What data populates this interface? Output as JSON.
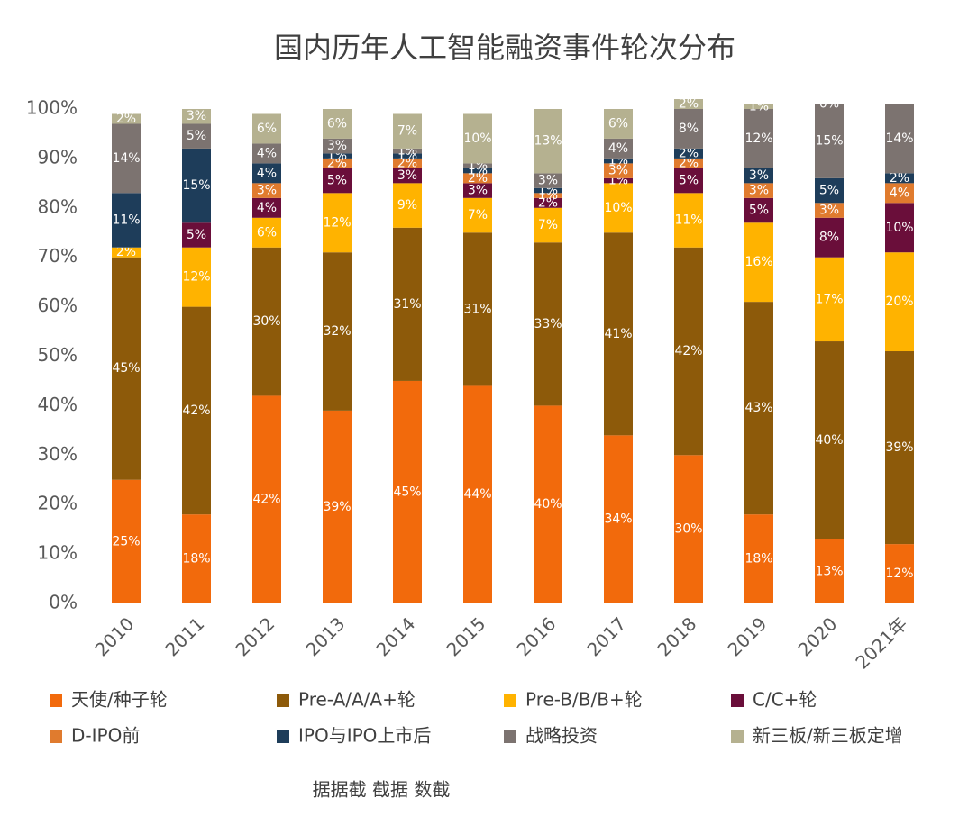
{
  "chart_data": {
    "type": "bar",
    "stacked": true,
    "title": "国内历年人工智能融资事件轮次分布",
    "categories": [
      "2010",
      "2011",
      "2012",
      "2013",
      "2014",
      "2015",
      "2016",
      "2017",
      "2018",
      "2019",
      "2020",
      "2021年"
    ],
    "ylim": [
      0,
      100
    ],
    "yticks": [
      {
        "value": 0,
        "label": "0%"
      },
      {
        "value": 10,
        "label": "10%"
      },
      {
        "value": 20,
        "label": "20%"
      },
      {
        "value": 30,
        "label": "30%"
      },
      {
        "value": 40,
        "label": "40%"
      },
      {
        "value": 50,
        "label": "50%"
      },
      {
        "value": 60,
        "label": "60%"
      },
      {
        "value": 70,
        "label": "70%"
      },
      {
        "value": 80,
        "label": "80%"
      },
      {
        "value": 90,
        "label": "90%"
      },
      {
        "value": 100,
        "label": "100%"
      }
    ],
    "grid": false,
    "series": [
      {
        "name": "天使/种子轮",
        "color": "#f26a0c",
        "values": [
          25,
          18,
          42,
          39,
          45,
          44,
          40,
          34,
          30,
          18,
          13,
          12
        ],
        "value_labels": [
          "25%",
          "18%",
          "42%",
          "39%",
          "45%",
          "44%",
          "40%",
          "34%",
          "30%",
          "18%",
          "13%",
          "12%"
        ]
      },
      {
        "name": "Pre-A/A/A+轮",
        "color": "#8d5a0a",
        "values": [
          45,
          42,
          30,
          32,
          31,
          31,
          33,
          41,
          42,
          43,
          40,
          39
        ],
        "value_labels": [
          "45%",
          "42%",
          "30%",
          "32%",
          "31%",
          "31%",
          "33%",
          "41%",
          "42%",
          "43%",
          "40%",
          "39%"
        ]
      },
      {
        "name": "Pre-B/B/B+轮",
        "color": "#ffb300",
        "values": [
          2,
          12,
          6,
          12,
          9,
          7,
          7,
          10,
          11,
          16,
          17,
          20
        ],
        "value_labels": [
          "2%",
          "12%",
          "6%",
          "12%",
          "9%",
          "7%",
          "7%",
          "10%",
          "11%",
          "16%",
          "17%",
          "20%"
        ]
      },
      {
        "name": "C/C+轮",
        "color": "#6a0e3a",
        "values": [
          null,
          5,
          4,
          5,
          3,
          3,
          2,
          1,
          5,
          5,
          8,
          10
        ],
        "value_labels": [
          null,
          "5%",
          "4%",
          "5%",
          "3%",
          "3%",
          "2%",
          "1%",
          "5%",
          "5%",
          "8%",
          "10%"
        ]
      },
      {
        "name": "D-IPO前",
        "color": "#e07b2e",
        "values": [
          null,
          null,
          3,
          2,
          2,
          2,
          1,
          3,
          2,
          3,
          3,
          4
        ],
        "value_labels": [
          null,
          null,
          "3%",
          "2%",
          "2%",
          "2%",
          "1%",
          "3%",
          "2%",
          "3%",
          "3%",
          "4%"
        ]
      },
      {
        "name": "IPO与IPO上市后",
        "color": "#1e3d5a",
        "values": [
          11,
          15,
          4,
          1,
          1,
          1,
          1,
          1,
          2,
          3,
          5,
          2
        ],
        "value_labels": [
          "11%",
          "15%",
          "4%",
          "1%",
          "1%",
          "1%",
          "1%",
          "1%",
          "2%",
          "3%",
          "5%",
          "2%"
        ]
      },
      {
        "name": "战略投资",
        "color": "#7c7370",
        "values": [
          14,
          5,
          4,
          3,
          1,
          1,
          3,
          4,
          8,
          12,
          15,
          14
        ],
        "value_labels": [
          "14%",
          "5%",
          "4%",
          "3%",
          "1%",
          "1%",
          "3%",
          "4%",
          "8%",
          "12%",
          "15%",
          "14%"
        ]
      },
      {
        "name": "新三板/新三板定增",
        "color": "#b5b190",
        "values": [
          2,
          3,
          6,
          6,
          7,
          10,
          13,
          6,
          2,
          1,
          0,
          null
        ],
        "value_labels": [
          "2%",
          "3%",
          "6%",
          "6%",
          "7%",
          "10%",
          "13%",
          "6%",
          "2%",
          "1%",
          "0%",
          null
        ]
      }
    ],
    "source": "据据截  截据  数截"
  }
}
